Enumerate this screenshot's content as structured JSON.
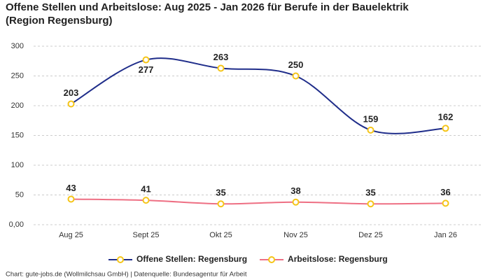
{
  "chart_data": {
    "type": "line",
    "title": "Offene Stellen und Arbeitslose: Aug 2025 - Jan 2026 für Berufe in der Bauelektrik",
    "subtitle": "(Region Regensburg)",
    "categories": [
      "Aug 25",
      "Sept 25",
      "Okt 25",
      "Nov 25",
      "Dez 25",
      "Jan 26"
    ],
    "series": [
      {
        "name": "Offene Stellen: Regensburg",
        "color": "#1f2d8a",
        "values": [
          203,
          277,
          263,
          250,
          159,
          162
        ]
      },
      {
        "name": "Arbeitslose: Regensburg",
        "color": "#ee6f83",
        "values": [
          43,
          41,
          35,
          38,
          35,
          36
        ]
      }
    ],
    "marker_color": "#f5c518",
    "ylim": [
      0,
      300
    ],
    "yticks": [
      {
        "value": 0,
        "label": "0,00"
      },
      50,
      100,
      150,
      200,
      250,
      300
    ],
    "grid": true,
    "legend": "bottom",
    "footer": "Chart: gute-jobs.de (Wollmilchsau GmbH) | Datenquelle: Bundesagentur für Arbeit"
  }
}
